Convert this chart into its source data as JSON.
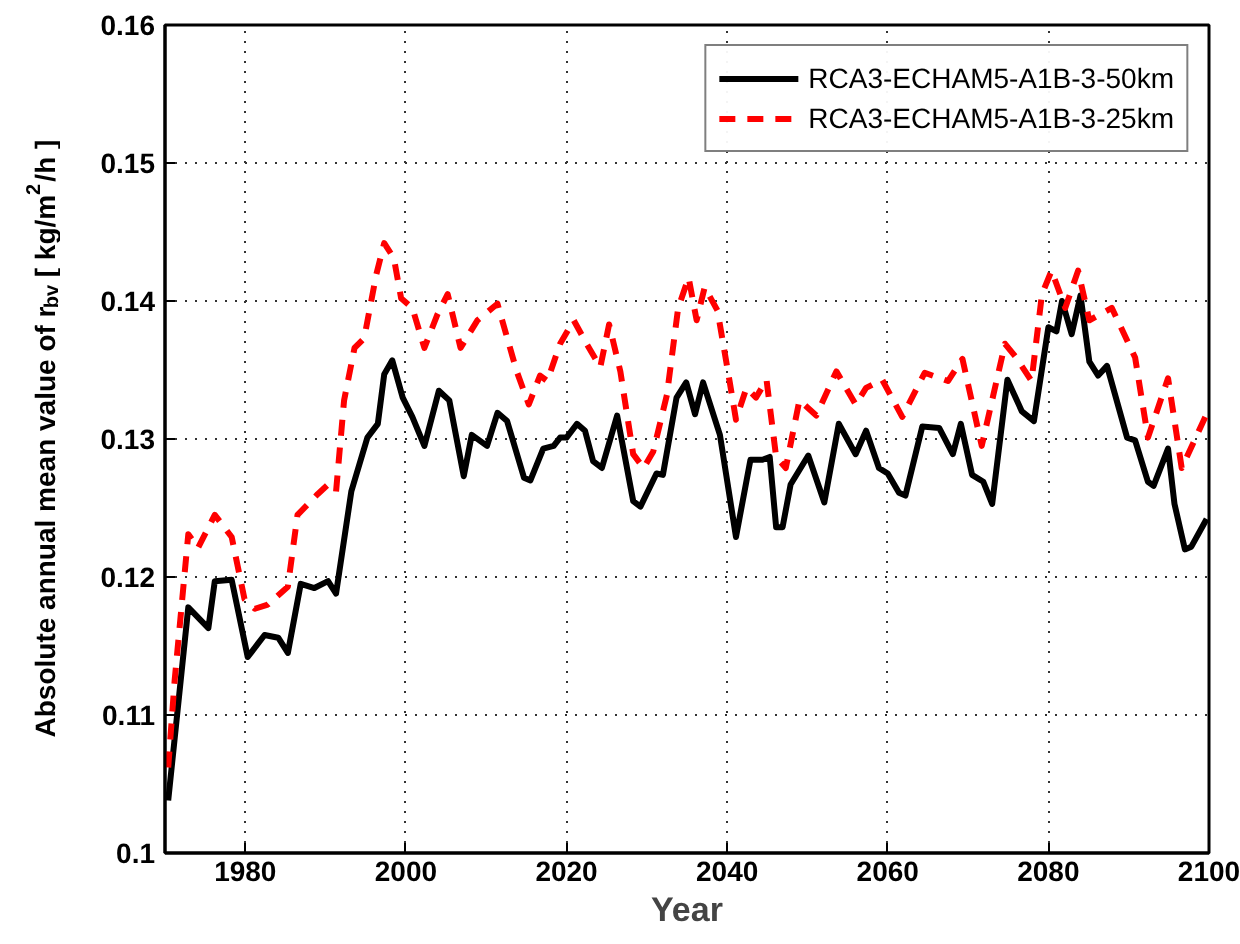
{
  "chart_data": {
    "type": "line",
    "xlabel": "Year",
    "ylabel": "Absolute annual mean value of r$_{bv}$ [ kg/m$^{2}$/h ]",
    "xlim": [
      1970,
      2100
    ],
    "ylim": [
      0.1,
      0.16
    ],
    "xticks": [
      1980,
      2000,
      2020,
      2040,
      2060,
      2080,
      2100
    ],
    "yticks": [
      0.1,
      0.11,
      0.12,
      0.13,
      0.14,
      0.15,
      0.16
    ],
    "grid": true,
    "legend": "top right",
    "marker": "none",
    "series": [
      {
        "name": "RCA3-ECHAM5-A1B-3-50km",
        "color": "#000000",
        "line_style": "solid",
        "x": [
          1970.4,
          1972.9,
          1975.4,
          1976.2,
          1978.3,
          1980.3,
          1982.4,
          1984.1,
          1985.3,
          1986.9,
          1988.6,
          1990.3,
          1991.3,
          1993.2,
          1995.2,
          1996.5,
          1997.3,
          1998.3,
          1999.6,
          2000.8,
          2002.3,
          2004.1,
          2005.4,
          2007.2,
          2008.2,
          2010.1,
          2011.4,
          2012.6,
          2014.7,
          2015.5,
          2017.1,
          2018.4,
          2019.2,
          2020.0,
          2021.3,
          2022.3,
          2023.3,
          2024.4,
          2026.3,
          2028.3,
          2029.2,
          2031.2,
          2032.0,
          2033.7,
          2034.9,
          2036.0,
          2037.0,
          2039.1,
          2041.1,
          2042.9,
          2044.4,
          2045.3,
          2046.1,
          2046.9,
          2047.9,
          2050.1,
          2052.1,
          2053.9,
          2056.0,
          2057.3,
          2058.9,
          2060.0,
          2061.4,
          2062.2,
          2064.3,
          2066.4,
          2068.1,
          2069.1,
          2070.5,
          2071.9,
          2073.0,
          2074.9,
          2076.7,
          2078.2,
          2080.0,
          2081.0,
          2081.7,
          2082.9,
          2084.0,
          2085.1,
          2086.2,
          2087.3,
          2089.8,
          2090.8,
          2092.4,
          2093.1,
          2094.9,
          2095.7,
          2097.0,
          2097.8,
          2099.7
        ],
        "values": [
          0.1038,
          0.1178,
          0.1163,
          0.1197,
          0.1198,
          0.1142,
          0.1158,
          0.1156,
          0.1145,
          0.1195,
          0.1192,
          0.1197,
          0.1188,
          0.1262,
          0.1301,
          0.1311,
          0.1347,
          0.1357,
          0.133,
          0.1316,
          0.1295,
          0.1335,
          0.1328,
          0.1273,
          0.1303,
          0.1295,
          0.1319,
          0.1313,
          0.1272,
          0.127,
          0.1293,
          0.1295,
          0.1301,
          0.1301,
          0.1311,
          0.1306,
          0.1284,
          0.1279,
          0.1317,
          0.1255,
          0.1251,
          0.1275,
          0.1274,
          0.133,
          0.1341,
          0.1318,
          0.1341,
          0.1303,
          0.1229,
          0.1285,
          0.1285,
          0.1287,
          0.1236,
          0.1236,
          0.1267,
          0.1288,
          0.1254,
          0.1311,
          0.1289,
          0.1306,
          0.1279,
          0.1275,
          0.1261,
          0.1259,
          0.1309,
          0.1308,
          0.1289,
          0.1311,
          0.1274,
          0.1269,
          0.1253,
          0.1343,
          0.132,
          0.1313,
          0.1381,
          0.1378,
          0.14,
          0.1376,
          0.1404,
          0.1356,
          0.1346,
          0.1353,
          0.1301,
          0.1299,
          0.1269,
          0.1266,
          0.1293,
          0.1253,
          0.122,
          0.1222,
          0.1242
        ]
      },
      {
        "name": "RCA3-ECHAM5-A1B-3-25km",
        "color": "#ff0000",
        "line_style": "dashed",
        "x": [
          1970.4,
          1971.2,
          1972.9,
          1974.1,
          1976.2,
          1978.3,
          1979.9,
          1981.2,
          1982.8,
          1985.3,
          1986.5,
          1989.0,
          1990.3,
          1991.3,
          1992.3,
          1993.6,
          1994.8,
          1996.3,
          1997.3,
          1998.5,
          1999.4,
          2000.8,
          2002.3,
          2003.9,
          2005.2,
          2006.8,
          2008.9,
          2011.4,
          2013.8,
          2015.3,
          2016.7,
          2017.6,
          2019.2,
          2020.9,
          2022.5,
          2024.2,
          2025.3,
          2026.7,
          2028.3,
          2029.6,
          2030.8,
          2032.5,
          2033.9,
          2035.2,
          2036.2,
          2037.2,
          2038.8,
          2040.3,
          2041.1,
          2042.4,
          2043.6,
          2044.9,
          2046.1,
          2047.3,
          2049.0,
          2051.1,
          2053.6,
          2056.0,
          2057.3,
          2059.3,
          2061.8,
          2064.6,
          2067.5,
          2069.3,
          2071.7,
          2074.6,
          2076.0,
          2077.9,
          2079.2,
          2080.4,
          2082.1,
          2083.7,
          2085.1,
          2087.9,
          2090.8,
          2092.4,
          2094.9,
          2096.6,
          2099.7
        ],
        "values": [
          0.1062,
          0.1125,
          0.1231,
          0.1221,
          0.1245,
          0.1229,
          0.1184,
          0.1177,
          0.118,
          0.1193,
          0.1245,
          0.126,
          0.1267,
          0.1262,
          0.1328,
          0.1366,
          0.1373,
          0.1419,
          0.1442,
          0.1431,
          0.1402,
          0.1395,
          0.1366,
          0.139,
          0.1405,
          0.1366,
          0.1386,
          0.1398,
          0.1349,
          0.1325,
          0.1346,
          0.1342,
          0.1369,
          0.1386,
          0.1369,
          0.1352,
          0.1383,
          0.1349,
          0.1289,
          0.1279,
          0.1291,
          0.1332,
          0.1395,
          0.1417,
          0.1386,
          0.141,
          0.1393,
          0.1342,
          0.1314,
          0.1337,
          0.133,
          0.1343,
          0.1287,
          0.1279,
          0.1328,
          0.1317,
          0.1349,
          0.1325,
          0.1337,
          0.1343,
          0.1316,
          0.1348,
          0.1342,
          0.1358,
          0.1295,
          0.1369,
          0.1359,
          0.1342,
          0.1405,
          0.1422,
          0.1395,
          0.1422,
          0.1386,
          0.1395,
          0.1359,
          0.1301,
          0.1344,
          0.1279,
          0.1318
        ]
      }
    ]
  }
}
